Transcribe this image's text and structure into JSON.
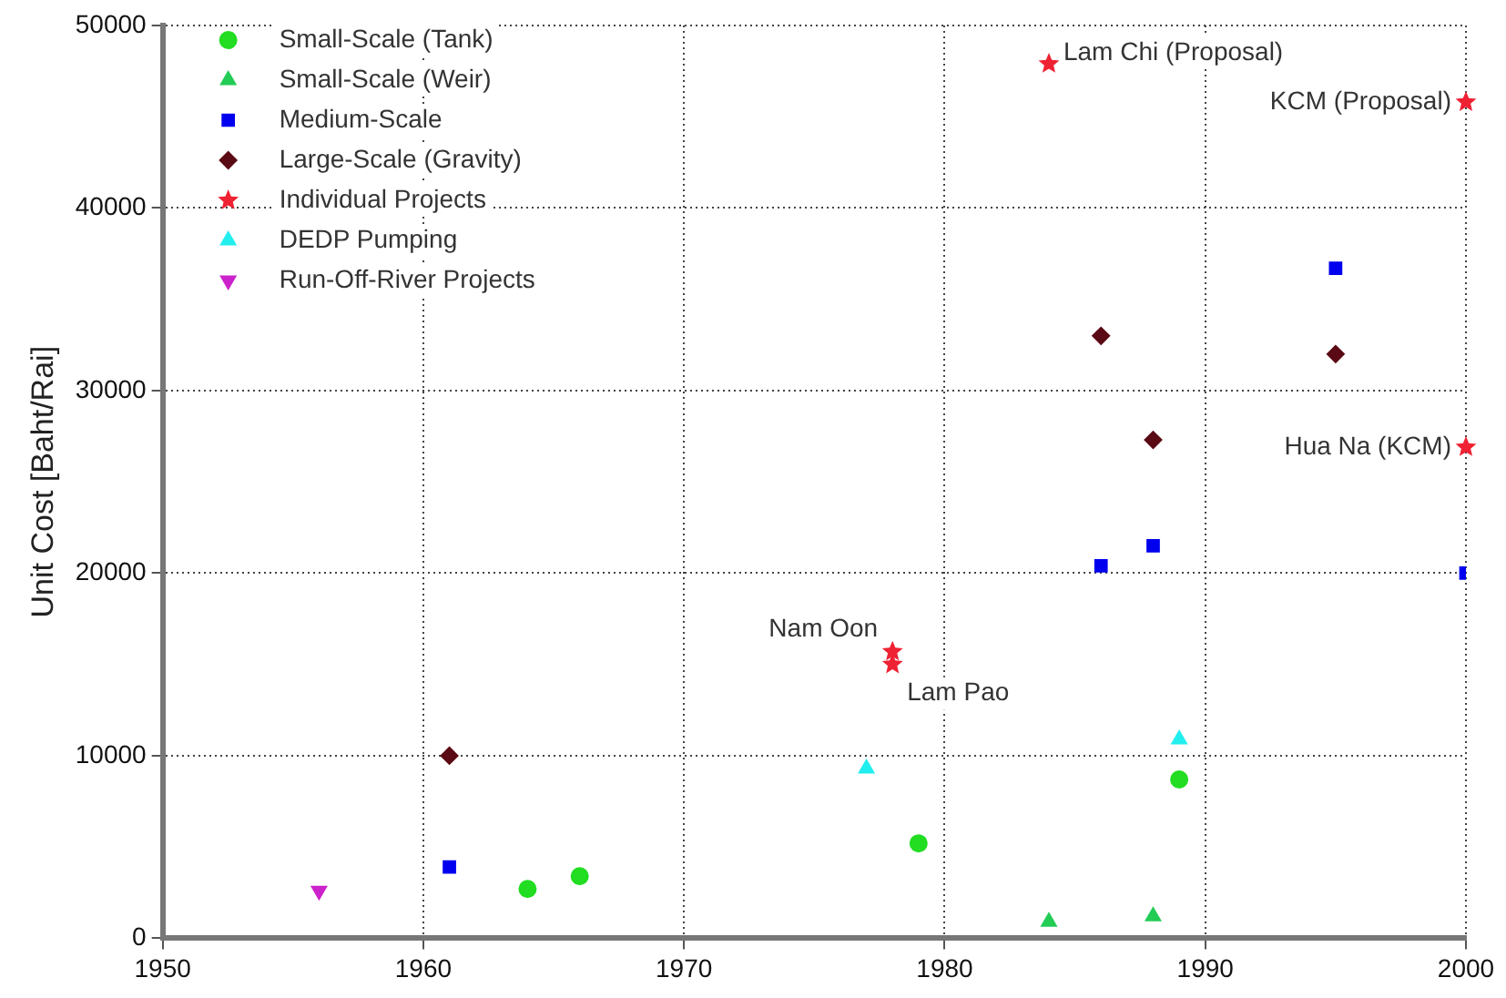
{
  "chart_data": {
    "type": "scatter",
    "ylabel": "Unit Cost [Baht/Rai]",
    "xlim": [
      1950,
      2000
    ],
    "xticks": [
      1950,
      1960,
      1970,
      1980,
      1990,
      2000
    ],
    "ylim": [
      0,
      50000
    ],
    "yticks": [
      0,
      10000,
      20000,
      30000,
      40000,
      50000
    ],
    "grid": true,
    "legend": "top left",
    "series": [
      {
        "name": "Small-Scale (Tank)",
        "color": "#22dd22",
        "marker": "circle",
        "x": [
          1964,
          1966,
          1979,
          1989
        ],
        "values": [
          2700,
          3400,
          5200,
          8700
        ]
      },
      {
        "name": "Small-Scale (Weir)",
        "color": "#22cc55",
        "marker": "triangle",
        "x": [
          1984,
          1988
        ],
        "values": [
          900,
          1200
        ]
      },
      {
        "name": "Medium-Scale",
        "color": "#0000ee",
        "marker": "square",
        "x": [
          1961,
          1986,
          1988,
          1995,
          2000
        ],
        "values": [
          3900,
          20400,
          21500,
          36700,
          20000
        ]
      },
      {
        "name": "Large-Scale (Gravity)",
        "color": "#5a0a14",
        "marker": "diamond",
        "x": [
          1961,
          1986,
          1988,
          1995
        ],
        "values": [
          10000,
          33000,
          27300,
          32000
        ]
      },
      {
        "name": "Individual Projects",
        "color": "#ee2233",
        "marker": "star",
        "x": [
          1978,
          1978,
          1984,
          2000,
          2000
        ],
        "values": [
          15700,
          15000,
          47900,
          45800,
          26900
        ]
      },
      {
        "name": "DEDP Pumping",
        "color": "#22eeee",
        "marker": "triangle",
        "x": [
          1977,
          1989
        ],
        "values": [
          9300,
          10900
        ]
      },
      {
        "name": "Run-Off-River Projects",
        "color": "#cc22cc",
        "marker": "triangle-down",
        "x": [
          1956
        ],
        "values": [
          2600
        ]
      }
    ],
    "annotations": [
      {
        "text": "Lam Chi (Proposal)",
        "x": 1984,
        "y": 47900
      },
      {
        "text": "KCM (Proposal)",
        "x": 2000,
        "y": 45800
      },
      {
        "text": "Hua Na (KCM)",
        "x": 2000,
        "y": 26900
      },
      {
        "text": "Nam Oon",
        "x": 1978,
        "y": 15700
      },
      {
        "text": "Lam Pao",
        "x": 1978,
        "y": 15000
      }
    ]
  }
}
